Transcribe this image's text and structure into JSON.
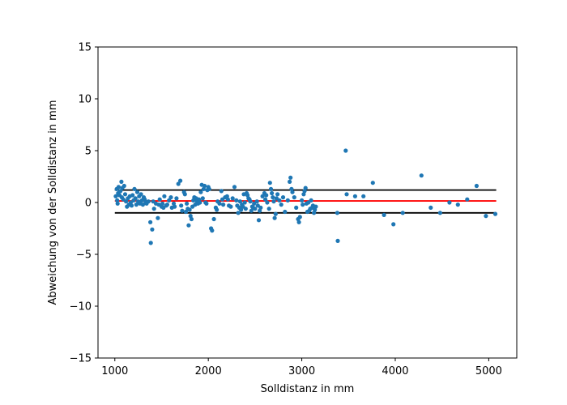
{
  "chart_data": {
    "type": "scatter",
    "title": "",
    "xlabel": "Solldistanz in mm",
    "ylabel": "Abweichung von der Solldistanz in mm",
    "xlim": [
      820,
      5300
    ],
    "ylim": [
      -15,
      15
    ],
    "xticks": [
      1000,
      2000,
      3000,
      4000,
      5000
    ],
    "yticks": [
      -15,
      -10,
      -5,
      0,
      5,
      10,
      15
    ],
    "xtick_labels": [
      "1000",
      "2000",
      "3000",
      "4000",
      "5000"
    ],
    "ytick_labels": [
      "−15",
      "−10",
      "−5",
      "0",
      "5",
      "10",
      "15"
    ],
    "grid": false,
    "colors": {
      "points": "#1f77b4",
      "mean_line": "#ff0000",
      "limit_lines": "#000000"
    },
    "reference_lines": [
      {
        "role": "upper-limit",
        "y": 1.2,
        "x": [
          1000,
          5080
        ],
        "color": "#000000"
      },
      {
        "role": "mean",
        "y": 0.15,
        "x": [
          1000,
          5080
        ],
        "color": "#ff0000"
      },
      {
        "role": "lower-limit",
        "y": -1.0,
        "x": [
          1000,
          5080
        ],
        "color": "#000000"
      }
    ],
    "series": [
      {
        "points": [
          [
            1010,
            0.6
          ],
          [
            1020,
            1.3
          ],
          [
            1025,
            0.2
          ],
          [
            1030,
            -0.1
          ],
          [
            1035,
            0.9
          ],
          [
            1040,
            1.5
          ],
          [
            1050,
            0.7
          ],
          [
            1060,
            1.1
          ],
          [
            1070,
            2.0
          ],
          [
            1075,
            0.5
          ],
          [
            1080,
            1.4
          ],
          [
            1090,
            0.3
          ],
          [
            1100,
            1.6
          ],
          [
            1110,
            0.8
          ],
          [
            1120,
            0.1
          ],
          [
            1130,
            -0.4
          ],
          [
            1140,
            0.4
          ],
          [
            1150,
            -0.2
          ],
          [
            1160,
            0.6
          ],
          [
            1170,
            0.0
          ],
          [
            1180,
            -0.3
          ],
          [
            1190,
            0.7
          ],
          [
            1200,
            0.2
          ],
          [
            1210,
            1.3
          ],
          [
            1220,
            0.4
          ],
          [
            1230,
            -0.2
          ],
          [
            1240,
            1.0
          ],
          [
            1250,
            0.1
          ],
          [
            1260,
            0.6
          ],
          [
            1270,
            -0.1
          ],
          [
            1280,
            0.8
          ],
          [
            1290,
            0.2
          ],
          [
            1300,
            -0.2
          ],
          [
            1310,
            0.5
          ],
          [
            1320,
            0.3
          ],
          [
            1330,
            0.0
          ],
          [
            1340,
            -0.1
          ],
          [
            1360,
            0.1
          ],
          [
            1380,
            -1.9
          ],
          [
            1385,
            -3.9
          ],
          [
            1400,
            -2.6
          ],
          [
            1410,
            0.1
          ],
          [
            1420,
            -0.6
          ],
          [
            1440,
            -0.1
          ],
          [
            1460,
            -1.5
          ],
          [
            1470,
            -0.2
          ],
          [
            1480,
            0.3
          ],
          [
            1500,
            -0.4
          ],
          [
            1510,
            -0.1
          ],
          [
            1520,
            -0.5
          ],
          [
            1530,
            0.6
          ],
          [
            1550,
            -0.3
          ],
          [
            1560,
            -0.2
          ],
          [
            1580,
            0.2
          ],
          [
            1600,
            0.5
          ],
          [
            1610,
            -0.5
          ],
          [
            1630,
            -0.1
          ],
          [
            1640,
            -0.4
          ],
          [
            1660,
            0.4
          ],
          [
            1680,
            1.8
          ],
          [
            1700,
            2.1
          ],
          [
            1710,
            -0.3
          ],
          [
            1720,
            -0.8
          ],
          [
            1740,
            1.0
          ],
          [
            1750,
            0.8
          ],
          [
            1760,
            -0.9
          ],
          [
            1770,
            -0.1
          ],
          [
            1780,
            -0.6
          ],
          [
            1790,
            -2.2
          ],
          [
            1800,
            -0.7
          ],
          [
            1810,
            -1.3
          ],
          [
            1820,
            -1.6
          ],
          [
            1830,
            -0.4
          ],
          [
            1840,
            0.2
          ],
          [
            1850,
            0.5
          ],
          [
            1860,
            -0.2
          ],
          [
            1870,
            0.4
          ],
          [
            1880,
            0.1
          ],
          [
            1890,
            -0.1
          ],
          [
            1900,
            0.3
          ],
          [
            1910,
            0.0
          ],
          [
            1920,
            1.0
          ],
          [
            1930,
            1.7
          ],
          [
            1940,
            0.4
          ],
          [
            1950,
            1.3
          ],
          [
            1960,
            1.6
          ],
          [
            1970,
            0.0
          ],
          [
            1980,
            -0.1
          ],
          [
            1990,
            1.2
          ],
          [
            2000,
            1.5
          ],
          [
            2010,
            1.3
          ],
          [
            2030,
            -2.5
          ],
          [
            2040,
            -2.7
          ],
          [
            2060,
            -1.6
          ],
          [
            2080,
            -0.5
          ],
          [
            2090,
            -0.7
          ],
          [
            2100,
            0.1
          ],
          [
            2120,
            -0.1
          ],
          [
            2140,
            1.1
          ],
          [
            2150,
            0.3
          ],
          [
            2160,
            -0.2
          ],
          [
            2180,
            0.5
          ],
          [
            2200,
            0.6
          ],
          [
            2210,
            0.3
          ],
          [
            2220,
            -0.3
          ],
          [
            2240,
            -0.4
          ],
          [
            2260,
            0.4
          ],
          [
            2280,
            1.5
          ],
          [
            2300,
            0.2
          ],
          [
            2310,
            -0.3
          ],
          [
            2320,
            -1.0
          ],
          [
            2330,
            -0.5
          ],
          [
            2340,
            0.1
          ],
          [
            2350,
            -0.7
          ],
          [
            2360,
            -0.2
          ],
          [
            2370,
            -0.4
          ],
          [
            2380,
            0.8
          ],
          [
            2390,
            0.0
          ],
          [
            2400,
            -0.6
          ],
          [
            2410,
            0.9
          ],
          [
            2420,
            0.7
          ],
          [
            2430,
            0.4
          ],
          [
            2440,
            0.3
          ],
          [
            2450,
            0.1
          ],
          [
            2460,
            -0.8
          ],
          [
            2470,
            -0.4
          ],
          [
            2480,
            -0.5
          ],
          [
            2490,
            -0.1
          ],
          [
            2500,
            -0.6
          ],
          [
            2520,
            0.1
          ],
          [
            2530,
            -0.3
          ],
          [
            2540,
            -1.7
          ],
          [
            2550,
            -0.8
          ],
          [
            2560,
            -0.5
          ],
          [
            2580,
            0.6
          ],
          [
            2600,
            0.9
          ],
          [
            2610,
            0.3
          ],
          [
            2620,
            0.7
          ],
          [
            2630,
            0.0
          ],
          [
            2650,
            -0.6
          ],
          [
            2660,
            1.9
          ],
          [
            2670,
            1.3
          ],
          [
            2680,
            0.9
          ],
          [
            2690,
            0.5
          ],
          [
            2700,
            0.1
          ],
          [
            2710,
            -1.5
          ],
          [
            2720,
            -1.1
          ],
          [
            2730,
            0.4
          ],
          [
            2740,
            0.8
          ],
          [
            2760,
            0.2
          ],
          [
            2780,
            -0.2
          ],
          [
            2800,
            0.5
          ],
          [
            2820,
            -0.9
          ],
          [
            2850,
            0.2
          ],
          [
            2870,
            2.0
          ],
          [
            2880,
            2.4
          ],
          [
            2890,
            1.3
          ],
          [
            2900,
            1.0
          ],
          [
            2920,
            0.5
          ],
          [
            2940,
            -0.5
          ],
          [
            2960,
            -1.6
          ],
          [
            2970,
            -1.9
          ],
          [
            2980,
            -1.4
          ],
          [
            3000,
            0.2
          ],
          [
            3010,
            -0.2
          ],
          [
            3020,
            0.8
          ],
          [
            3030,
            1.1
          ],
          [
            3040,
            1.4
          ],
          [
            3050,
            -0.1
          ],
          [
            3060,
            -0.9
          ],
          [
            3070,
            0.0
          ],
          [
            3080,
            -0.8
          ],
          [
            3090,
            -0.6
          ],
          [
            3100,
            0.2
          ],
          [
            3110,
            -0.5
          ],
          [
            3120,
            -0.3
          ],
          [
            3130,
            -1.0
          ],
          [
            3140,
            -0.7
          ],
          [
            3150,
            -0.4
          ],
          [
            3380,
            -1.0
          ],
          [
            3385,
            -3.7
          ],
          [
            3470,
            5.0
          ],
          [
            3480,
            0.8
          ],
          [
            3570,
            0.6
          ],
          [
            3660,
            0.6
          ],
          [
            3760,
            1.9
          ],
          [
            3880,
            -1.2
          ],
          [
            3980,
            -2.1
          ],
          [
            4080,
            -1.0
          ],
          [
            4280,
            2.6
          ],
          [
            4380,
            -0.5
          ],
          [
            4480,
            -1.0
          ],
          [
            4580,
            0.0
          ],
          [
            4670,
            -0.2
          ],
          [
            4770,
            0.3
          ],
          [
            4870,
            1.6
          ],
          [
            4970,
            -1.3
          ],
          [
            5070,
            -1.1
          ]
        ]
      }
    ]
  }
}
